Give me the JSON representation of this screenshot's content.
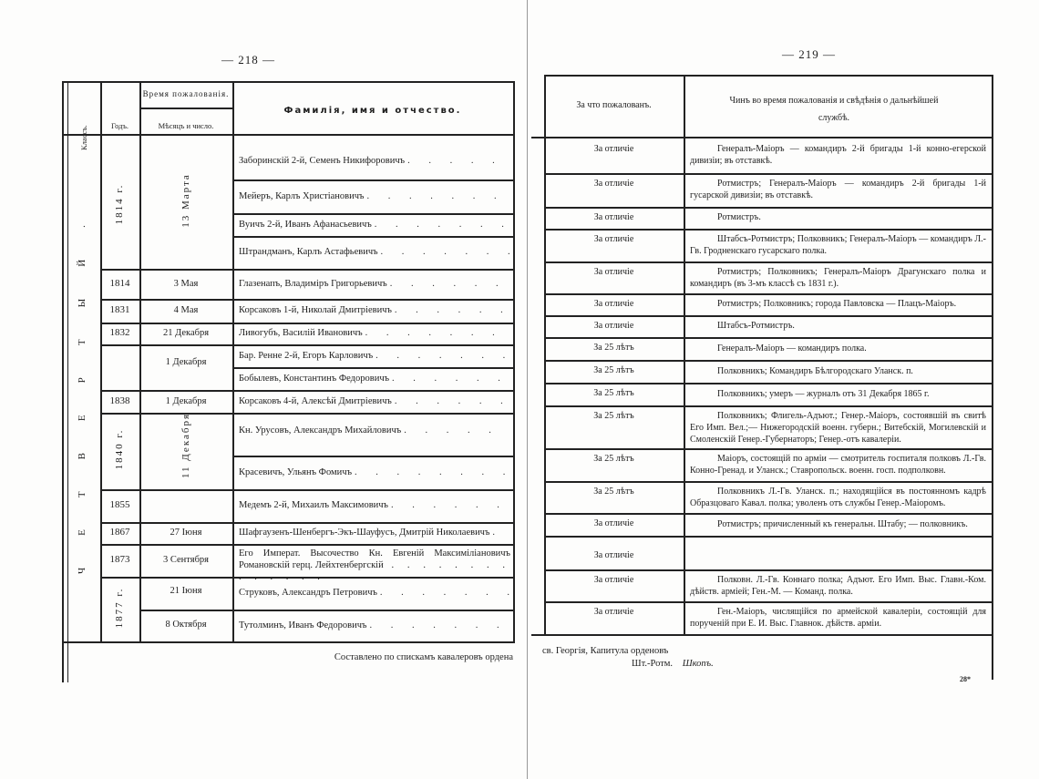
{
  "left_page": {
    "page_number": "— 218 —",
    "headers": {
      "class": "Классъ.",
      "time_group": "Время пожалованія.",
      "year": "Годъ.",
      "month_day": "Мѣсяцъ и число.",
      "name": "Фамилія, имя и отчество."
    },
    "class_label": "ЧЕТВЕРТЫЙ.",
    "date_groups": [
      {
        "year": "1814 г.",
        "month": "13 Марта",
        "vertical_year": true,
        "vertical_month": true
      },
      {
        "year": "1814",
        "month": "3 Мая"
      },
      {
        "year": "1831",
        "month": "4 Мая"
      },
      {
        "year": "1832",
        "month": "21 Декабря"
      },
      {
        "year": "",
        "month": "1 Декабря"
      },
      {
        "year": "1838",
        "month": "1 Декабря"
      },
      {
        "year": "1840 г.",
        "month": "11 Декабря",
        "vertical_year": true,
        "vertical_month": true
      },
      {
        "year": "1855",
        "month": ""
      },
      {
        "year": "1867",
        "month": "27 Іюня"
      },
      {
        "year": "1873",
        "month": "3 Сентября"
      },
      {
        "year": "1877 г.",
        "vertical_year": true,
        "months": [
          "21 Іюня",
          "8 Октября"
        ]
      }
    ],
    "names": [
      "Заборинскій 2-й, Семенъ Никифоровичъ",
      "Мейеръ, Карлъ Христіановичъ",
      "Вуичъ 2-й, Иванъ Афанасьевичъ",
      "Штрандманъ, Карлъ Астафьевичъ",
      "Глазенапъ, Владиміръ Григорьевичъ",
      "Корсаковъ 1-й, Николай Дмитріевичъ",
      "Ливогубъ, Василій Ивановичъ",
      "Бар. Ренне 2-й, Егоръ Карловичъ",
      "Бобылевъ, Константинъ Федоровичъ",
      "Корсаковъ 4-й, Алексѣй Дмитріевичъ",
      "Кн. Урусовъ, Александръ Михайловичъ",
      "Красевичъ, Ульянъ Фомичъ",
      "Медемъ 2-й, Михаилъ Максимовичъ",
      "Шафгаузенъ-Шенбергъ-Экъ-Шауфусъ, Дмитрій Николаевичъ",
      "Его Императ. Высочество Кн. Евгеній Максиміліановичъ Романовскій герц. Лейхтенбергскій",
      "Струковъ, Александръ Петровичъ",
      "Тутолминъ, Иванъ Федоровичъ"
    ],
    "footer": "Составлено по спискамъ кавалеровъ ордена"
  },
  "right_page": {
    "page_number": "— 219 —",
    "headers": {
      "reason": "За что пожалованъ.",
      "rank": "Чинъ во время пожалованія и свѣдѣнія о дальнѣйшей службѣ."
    },
    "rows": [
      {
        "reason": "За отличіе",
        "rank": "Генералъ-Маіоръ — командиръ 2-й бригады 1-й конно-егерской дивизіи; въ отставкѣ."
      },
      {
        "reason": "За отличіе",
        "rank": "Ротмистръ; Генералъ-Маіоръ — командиръ 2-й бригады 1-й гусарской дивизіи; въ отставкѣ."
      },
      {
        "reason": "За отличіе",
        "rank": "Ротмистръ."
      },
      {
        "reason": "За отличіе",
        "rank": "Штабсъ-Ротмистръ; Полковникъ; Генералъ-Маіоръ — командиръ Л.-Гв. Гродненскаго гусарскаго полка."
      },
      {
        "reason": "За отличіе",
        "rank": "Ротмистръ; Полковникъ; Генералъ-Маіоръ Драгунскаго полка и командиръ (въ 3-мъ классѣ съ 1831 г.)."
      },
      {
        "reason": "За отличіе",
        "rank": "Ротмистръ; Полковникъ; города Павловска — Плацъ-Маіоръ."
      },
      {
        "reason": "За отличіе",
        "rank": "Штабсъ-Ротмистръ."
      },
      {
        "reason": "За 25 лѣтъ",
        "rank": "Генералъ-Маіоръ — командиръ полка."
      },
      {
        "reason": "За 25 лѣтъ",
        "rank": "Полковникъ; Командиръ Бѣлгородскаго Уланск. п."
      },
      {
        "reason": "За 25 лѣтъ",
        "rank": "Полковникъ; умеръ — журналъ отъ 31 Декабря 1865 г."
      },
      {
        "reason": "За 25 лѣтъ",
        "rank": "Полковникъ; Флигель-Адъют.; Генер.-Маіоръ, состоявшій въ свитѣ Его Имп. Вел.;— Нижегородскій военн. губерн.; Витебскій, Могилевскій и Смоленскій Генер.-Губернаторъ; Генер.-отъ кавалеріи."
      },
      {
        "reason": "За 25 лѣтъ",
        "rank": "Маіоръ, состоящій по арміи — смотритель госпиталя полковъ Л.-Гв. Конно-Гренад. и Уланск.; Ставропольск. военн. госп. подполковн."
      },
      {
        "reason": "За 25 лѣтъ",
        "rank": "Полковникъ Л.-Гв. Уланск. п.; находящійся въ постоянномъ кадрѣ Образцоваго Кавал. полка; уволенъ отъ службы Генер.-Маіоромъ."
      },
      {
        "reason": "За отличіе",
        "rank": "Ротмистръ; причисленный къ генеральн. Штабу; — полковникъ."
      },
      {
        "reason": "За отличіе",
        "rank": ""
      },
      {
        "reason": "За отличіе",
        "rank": "Полковн. Л.-Гв. Коннаго полка; Адъют. Его Имп. Выс. Главн.-Ком. дѣйств. арміей; Ген.-М. — Команд. полка."
      },
      {
        "reason": "За отличіе",
        "rank": "Ген.-Маіоръ, числящійся по армейской кавалеріи, состоящій для порученій при Е. И. Выс. Главнок. дѣйств. арміи."
      }
    ],
    "footer_line1": "св. Георгія, Капитула орденовъ",
    "footer_signature_rank": "Шт.-Ротм.",
    "footer_signature_name": "Шкопъ.",
    "signature_mark": "28*"
  }
}
